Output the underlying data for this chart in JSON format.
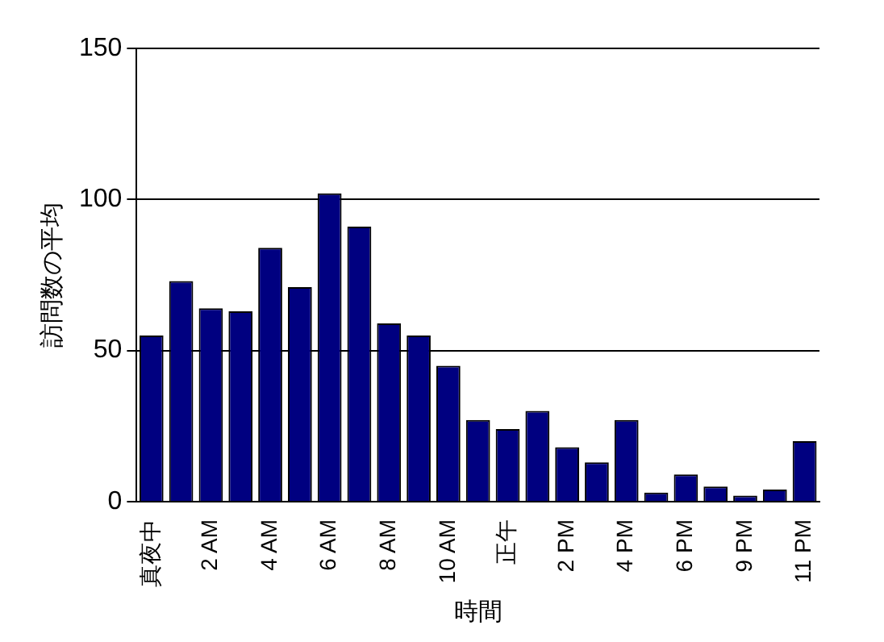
{
  "chart_data": {
    "type": "bar",
    "xlabel": "時間",
    "ylabel": "訪問数の平均",
    "categories": [
      "真夜中",
      null,
      "2 AM",
      null,
      "4 AM",
      null,
      "6 AM",
      null,
      "8 AM",
      null,
      "10 AM",
      null,
      "正午",
      null,
      "2 PM",
      null,
      "4 PM",
      null,
      "6 PM",
      null,
      "9 PM",
      null,
      "11 PM"
    ],
    "values": [
      55,
      73,
      64,
      63,
      84,
      71,
      102,
      91,
      59,
      55,
      45,
      27,
      24,
      30,
      18,
      13,
      27,
      3,
      9,
      5,
      2,
      4,
      20
    ],
    "color": "#000080",
    "ylim": [
      0,
      150
    ],
    "yticks": [
      0,
      50,
      100,
      150
    ],
    "grid": "y",
    "legend": false
  }
}
